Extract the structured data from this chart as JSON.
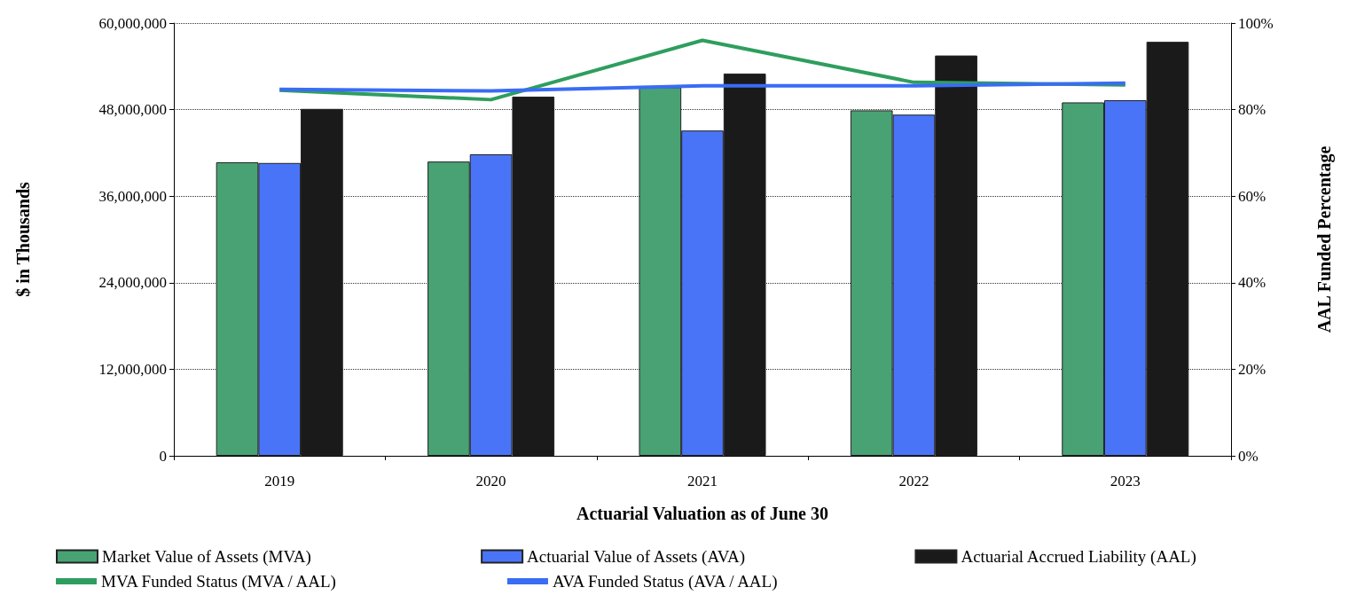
{
  "chart_data": {
    "type": "bar",
    "xlabel": "Actuarial Valuation as of June 30",
    "ylabel": "$ in Thousands",
    "y2label": "AAL Funded Percentage",
    "categories": [
      "2019",
      "2020",
      "2021",
      "2022",
      "2023"
    ],
    "series": [
      {
        "name": "Market Value of Assets (MVA)",
        "type": "bar",
        "color": "#48a274",
        "values": [
          40700000,
          40800000,
          51100000,
          47900000,
          49000000
        ]
      },
      {
        "name": "Actuarial Value of Assets (AVA)",
        "type": "bar",
        "color": "#4a74f8",
        "values": [
          40600000,
          41800000,
          45100000,
          47300000,
          49300000
        ]
      },
      {
        "name": "Actuarial Accrued Liability (AAL)",
        "type": "bar",
        "color": "#1a1a1a",
        "values": [
          48100000,
          49800000,
          53000000,
          55500000,
          57400000
        ]
      },
      {
        "name": "MVA Funded Status (MVA / AAL)",
        "type": "line",
        "axis": "y2",
        "color": "#2e9e5e",
        "values": [
          84.5,
          82.3,
          96.0,
          86.3,
          85.7
        ]
      },
      {
        "name": "AVA Funded Status (AVA / AAL)",
        "type": "line",
        "axis": "y2",
        "color": "#3a6cf4",
        "values": [
          84.7,
          84.3,
          85.5,
          85.5,
          86.1
        ]
      }
    ],
    "ylim": [
      0,
      60000000
    ],
    "yticks": [
      0,
      {
        "value": 12000000,
        "label": "12,000,000"
      },
      {
        "value": 24000000,
        "label": "24,000,000"
      },
      {
        "value": 36000000,
        "label": "36,000,000"
      },
      {
        "value": 48000000,
        "label": "48,000,000"
      },
      {
        "value": 60000000,
        "label": "60,000,000"
      }
    ],
    "y2lim": [
      0,
      100
    ],
    "y2ticks": [
      {
        "value": 0,
        "label": "0%"
      },
      {
        "value": 20,
        "label": "20%"
      },
      {
        "value": 40,
        "label": "40%"
      },
      {
        "value": 60,
        "label": "60%"
      },
      {
        "value": 80,
        "label": "80%"
      },
      {
        "value": 100,
        "label": "100%"
      }
    ],
    "grid": "y",
    "legend": "bottom",
    "marker": "none",
    "line_style": "solid"
  }
}
